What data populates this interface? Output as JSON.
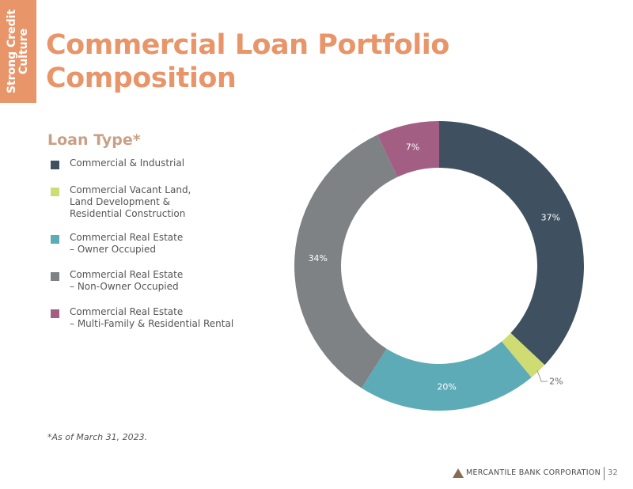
{
  "section_tab": {
    "lines": [
      "Strong Credit",
      "Culture"
    ],
    "color": "#e8956a"
  },
  "title": {
    "lines": [
      "Commercial Loan Portfolio",
      "Composition"
    ],
    "color": "#e8956a"
  },
  "legend_title": "Loan Type*",
  "legend": [
    {
      "lines": [
        "Commercial & Industrial"
      ],
      "color": "#3f5160"
    },
    {
      "lines": [
        "Commercial Vacant Land,",
        "Land Development &",
        "Residential Construction"
      ],
      "color": "#cfdc73"
    },
    {
      "lines": [
        "Commercial Real Estate",
        "– Owner Occupied"
      ],
      "color": "#5eabb8"
    },
    {
      "lines": [
        "Commercial Real Estate",
        "– Non-Owner Occupied"
      ],
      "color": "#7e8285"
    },
    {
      "lines": [
        "Commercial Real Estate",
        "– Multi-Family & Residential Rental"
      ],
      "color": "#a35f83"
    }
  ],
  "chart_data": {
    "type": "pie",
    "donut": true,
    "legend_position": "left",
    "slices": [
      {
        "category": "Commercial & Industrial",
        "value": 37,
        "label": "37%",
        "color": "#3f5160"
      },
      {
        "category": "Commercial Vacant Land, Land Development & Residential Construction",
        "value": 2,
        "label": "2%",
        "color": "#cfdc73"
      },
      {
        "category": "Commercial Real Estate – Owner Occupied",
        "value": 20,
        "label": "20%",
        "color": "#5eabb8"
      },
      {
        "category": "Commercial Real Estate – Non-Owner Occupied",
        "value": 34,
        "label": "34%",
        "color": "#7e8285"
      },
      {
        "category": "Commercial Real Estate – Multi-Family & Residential Rental",
        "value": 7,
        "label": "7%",
        "color": "#a35f83"
      }
    ]
  },
  "footnote": "*As of March 31, 2023.",
  "footer": {
    "company": "MERCANTILE BANK CORPORATION",
    "page_number": "32"
  }
}
